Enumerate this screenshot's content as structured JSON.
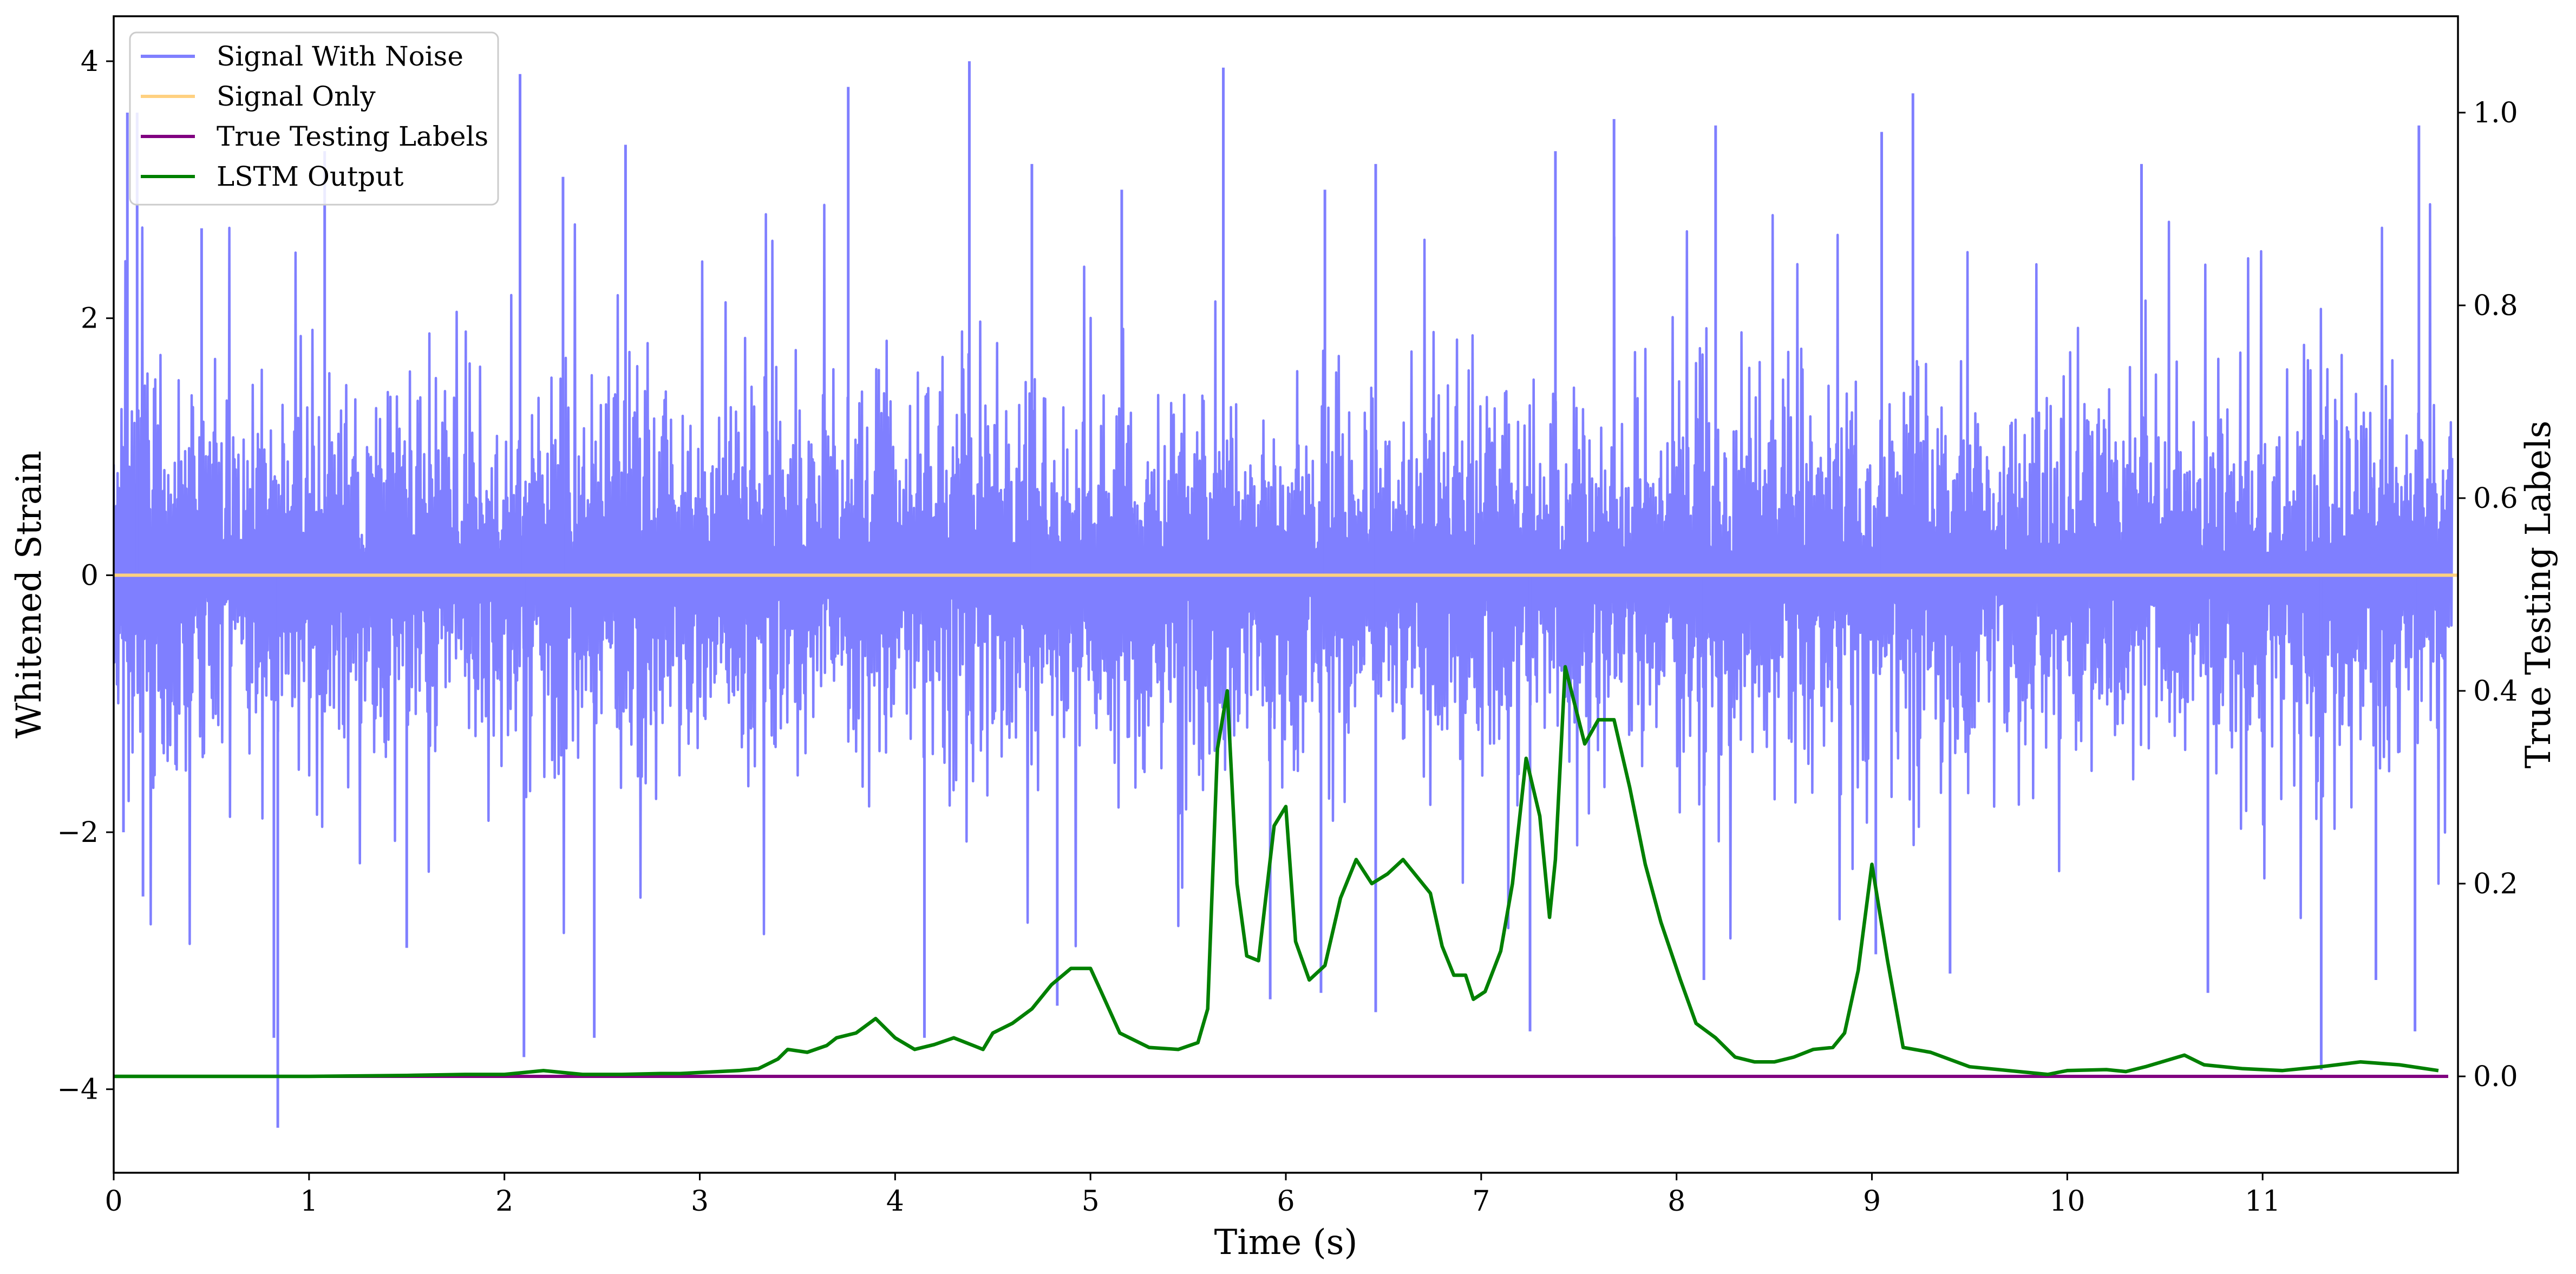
{
  "chart_data": {
    "type": "line",
    "x": {
      "label": "Time (s)",
      "lim": [
        0,
        12
      ],
      "ticks": [
        0,
        1,
        2,
        3,
        4,
        5,
        6,
        7,
        8,
        9,
        10,
        11
      ],
      "tick_labels": [
        "0",
        "1",
        "2",
        "3",
        "4",
        "5",
        "6",
        "7",
        "8",
        "9",
        "10",
        "11"
      ]
    },
    "y_left": {
      "label": "Whitened Strain",
      "lim": [
        -4.65,
        4.35
      ],
      "ticks": [
        -4,
        -2,
        0,
        2,
        4
      ],
      "tick_labels": [
        "−4",
        "−2",
        "0",
        "2",
        "4"
      ]
    },
    "y_right": {
      "label": "True Testing Labels",
      "lim": [
        -0.1,
        1.1
      ],
      "ticks": [
        0.0,
        0.2,
        0.4,
        0.6,
        0.8,
        1.0
      ],
      "tick_labels": [
        "0.0",
        "0.2",
        "0.4",
        "0.6",
        "0.8",
        "1.0"
      ]
    },
    "legend": {
      "placement": "upper-left",
      "entries": [
        {
          "label": "Signal With Noise",
          "color": "#7f7fff"
        },
        {
          "label": "Signal Only",
          "color": "#ffd180"
        },
        {
          "label": "True Testing Labels",
          "color": "#800080"
        },
        {
          "label": "LSTM Output",
          "color": "#008000"
        }
      ]
    },
    "series": [
      {
        "name": "Signal With Noise",
        "axis": "left",
        "color": "#7f7fff",
        "kind": "noise",
        "band": {
          "typical_low": -1.6,
          "typical_high": 1.6
        },
        "peaks_up": [
          {
            "x": 0.07,
            "y": 3.6
          },
          {
            "x": 0.12,
            "y": 3.6
          },
          {
            "x": 0.45,
            "y": 2.7
          },
          {
            "x": 1.08,
            "y": 3.3
          },
          {
            "x": 2.08,
            "y": 3.9
          },
          {
            "x": 2.3,
            "y": 3.1
          },
          {
            "x": 2.62,
            "y": 3.35
          },
          {
            "x": 3.76,
            "y": 3.8
          },
          {
            "x": 4.38,
            "y": 4.0
          },
          {
            "x": 4.7,
            "y": 3.2
          },
          {
            "x": 5.16,
            "y": 3.0
          },
          {
            "x": 5.68,
            "y": 3.95
          },
          {
            "x": 6.2,
            "y": 3.0
          },
          {
            "x": 6.46,
            "y": 3.2
          },
          {
            "x": 7.38,
            "y": 3.3
          },
          {
            "x": 7.68,
            "y": 3.55
          },
          {
            "x": 8.2,
            "y": 3.5
          },
          {
            "x": 9.05,
            "y": 3.45
          },
          {
            "x": 9.21,
            "y": 3.75
          },
          {
            "x": 10.38,
            "y": 3.2
          },
          {
            "x": 11.8,
            "y": 3.5
          }
        ],
        "peaks_down": [
          {
            "x": 0.05,
            "y": -2.0
          },
          {
            "x": 0.15,
            "y": -2.5
          },
          {
            "x": 0.82,
            "y": -3.6
          },
          {
            "x": 0.84,
            "y": -4.3
          },
          {
            "x": 1.5,
            "y": -2.9
          },
          {
            "x": 2.1,
            "y": -3.75
          },
          {
            "x": 2.46,
            "y": -3.6
          },
          {
            "x": 4.15,
            "y": -3.6
          },
          {
            "x": 4.83,
            "y": -3.35
          },
          {
            "x": 5.92,
            "y": -3.3
          },
          {
            "x": 6.18,
            "y": -3.25
          },
          {
            "x": 6.46,
            "y": -3.4
          },
          {
            "x": 7.25,
            "y": -3.55
          },
          {
            "x": 8.14,
            "y": -3.15
          },
          {
            "x": 9.02,
            "y": -2.95
          },
          {
            "x": 9.4,
            "y": -3.1
          },
          {
            "x": 10.72,
            "y": -3.25
          },
          {
            "x": 11.3,
            "y": -3.85
          },
          {
            "x": 11.58,
            "y": -3.15
          },
          {
            "x": 11.78,
            "y": -3.55
          }
        ]
      },
      {
        "name": "Signal Only",
        "axis": "left",
        "color": "#ffd180",
        "x": [
          0,
          12
        ],
        "y": [
          0,
          0
        ]
      },
      {
        "name": "True Testing Labels",
        "axis": "right",
        "color": "#800080",
        "x": [
          0,
          11.95
        ],
        "y": [
          0,
          0
        ]
      },
      {
        "name": "LSTM Output",
        "axis": "right",
        "color": "#008000",
        "x": [
          0,
          1.0,
          1.5,
          1.8,
          2.0,
          2.1,
          2.2,
          2.3,
          2.4,
          2.6,
          2.8,
          2.9,
          3.0,
          3.2,
          3.3,
          3.4,
          3.45,
          3.55,
          3.65,
          3.7,
          3.8,
          3.9,
          4.0,
          4.1,
          4.2,
          4.3,
          4.4,
          4.45,
          4.5,
          4.6,
          4.7,
          4.8,
          4.9,
          5.0,
          5.05,
          5.15,
          5.3,
          5.45,
          5.55,
          5.6,
          5.65,
          5.7,
          5.75,
          5.8,
          5.86,
          5.94,
          6.0,
          6.05,
          6.12,
          6.2,
          6.28,
          6.36,
          6.44,
          6.52,
          6.6,
          6.68,
          6.74,
          6.8,
          6.86,
          6.92,
          6.96,
          7.02,
          7.1,
          7.16,
          7.23,
          7.3,
          7.35,
          7.38,
          7.43,
          7.53,
          7.6,
          7.68,
          7.76,
          7.84,
          7.92,
          8.02,
          8.1,
          8.2,
          8.3,
          8.4,
          8.5,
          8.6,
          8.7,
          8.8,
          8.86,
          8.93,
          9.0,
          9.08,
          9.16,
          9.3,
          9.5,
          9.9,
          10.0,
          10.2,
          10.3,
          10.4,
          10.5,
          10.6,
          10.7,
          10.9,
          11.1,
          11.3,
          11.5,
          11.7,
          11.9
        ],
        "y": [
          0.0,
          0.0,
          0.001,
          0.002,
          0.002,
          0.004,
          0.006,
          0.004,
          0.002,
          0.002,
          0.003,
          0.003,
          0.004,
          0.006,
          0.008,
          0.018,
          0.028,
          0.025,
          0.032,
          0.04,
          0.045,
          0.06,
          0.04,
          0.028,
          0.033,
          0.04,
          0.032,
          0.028,
          0.045,
          0.055,
          0.07,
          0.095,
          0.112,
          0.112,
          0.09,
          0.045,
          0.03,
          0.028,
          0.035,
          0.07,
          0.34,
          0.4,
          0.2,
          0.125,
          0.12,
          0.26,
          0.28,
          0.14,
          0.1,
          0.115,
          0.185,
          0.225,
          0.2,
          0.21,
          0.225,
          0.205,
          0.19,
          0.135,
          0.105,
          0.105,
          0.08,
          0.088,
          0.13,
          0.2,
          0.33,
          0.27,
          0.165,
          0.225,
          0.425,
          0.345,
          0.37,
          0.37,
          0.3,
          0.22,
          0.16,
          0.1,
          0.055,
          0.04,
          0.02,
          0.015,
          0.015,
          0.02,
          0.028,
          0.03,
          0.045,
          0.11,
          0.22,
          0.12,
          0.03,
          0.025,
          0.01,
          0.002,
          0.006,
          0.007,
          0.005,
          0.01,
          0.016,
          0.022,
          0.012,
          0.008,
          0.006,
          0.01,
          0.015,
          0.012,
          0.006
        ]
      }
    ]
  }
}
